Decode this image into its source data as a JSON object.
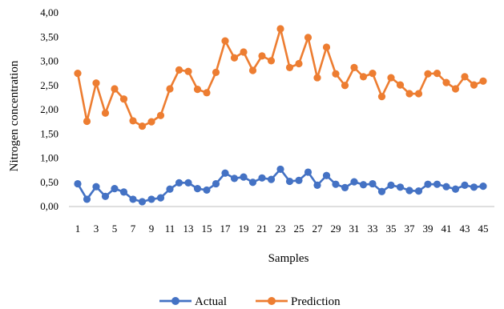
{
  "chart_data": {
    "type": "line",
    "xlabel": "Samples",
    "ylabel": "Nitrogen concentration",
    "ylim": [
      0,
      4
    ],
    "yticks": [
      "0,00",
      "0,50",
      "1,00",
      "1,50",
      "2,00",
      "2,50",
      "3,00",
      "3,50",
      "4,00"
    ],
    "xtick_labels": [
      "1",
      "3",
      "5",
      "7",
      "9",
      "11",
      "13",
      "15",
      "17",
      "19",
      "21",
      "23",
      "25",
      "27",
      "29",
      "31",
      "33",
      "35",
      "37",
      "39",
      "41",
      "43",
      "45"
    ],
    "grid": false,
    "legend_position": "bottom",
    "x": [
      1,
      2,
      3,
      4,
      5,
      6,
      7,
      8,
      9,
      10,
      11,
      12,
      13,
      14,
      15,
      16,
      17,
      18,
      19,
      20,
      21,
      22,
      23,
      24,
      25,
      26,
      27,
      28,
      29,
      30,
      31,
      32,
      33,
      34,
      35,
      36,
      37,
      38,
      39,
      40,
      41,
      42,
      43,
      44,
      45
    ],
    "series": [
      {
        "name": "Actual",
        "color": "#4472C4",
        "values": [
          0.47,
          0.15,
          0.41,
          0.21,
          0.37,
          0.3,
          0.15,
          0.1,
          0.15,
          0.18,
          0.36,
          0.49,
          0.49,
          0.37,
          0.34,
          0.47,
          0.69,
          0.58,
          0.61,
          0.5,
          0.59,
          0.56,
          0.77,
          0.52,
          0.54,
          0.71,
          0.44,
          0.64,
          0.46,
          0.39,
          0.51,
          0.45,
          0.47,
          0.31,
          0.44,
          0.4,
          0.33,
          0.32,
          0.46,
          0.46,
          0.41,
          0.36,
          0.44,
          0.4,
          0.42
        ]
      },
      {
        "name": "Prediction",
        "color": "#ED7D31",
        "values": [
          2.75,
          1.76,
          2.55,
          1.93,
          2.43,
          2.22,
          1.77,
          1.66,
          1.75,
          1.88,
          2.43,
          2.82,
          2.79,
          2.42,
          2.35,
          2.77,
          3.42,
          3.07,
          3.19,
          2.81,
          3.11,
          3.01,
          3.67,
          2.87,
          2.95,
          3.49,
          2.66,
          3.29,
          2.74,
          2.5,
          2.87,
          2.68,
          2.75,
          2.27,
          2.66,
          2.51,
          2.33,
          2.33,
          2.74,
          2.75,
          2.56,
          2.43,
          2.68,
          2.51,
          2.59
        ]
      }
    ]
  }
}
